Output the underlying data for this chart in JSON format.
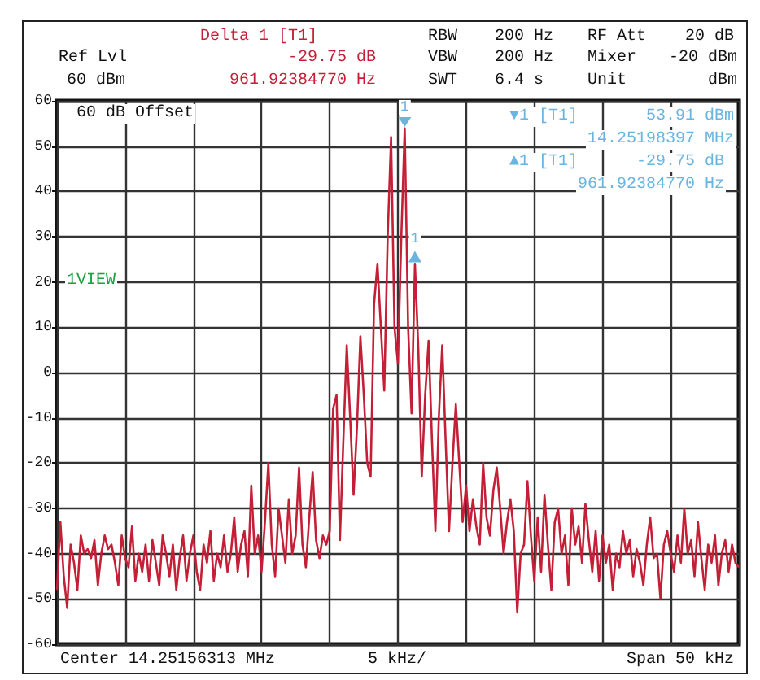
{
  "chart_data": {
    "type": "line",
    "color": "#c41f36",
    "categories": [
      null,
      null,
      null,
      null,
      null,
      null,
      null,
      null,
      null,
      null,
      null,
      null,
      null,
      null,
      null,
      null,
      null,
      null,
      null,
      null,
      null,
      null,
      null,
      null,
      null,
      null,
      null,
      null,
      null,
      null,
      null,
      null,
      null,
      null,
      null,
      null,
      null,
      null,
      null,
      null,
      null,
      null,
      null,
      null,
      null,
      null,
      null,
      null,
      null,
      null,
      null,
      null,
      null,
      null,
      null,
      null,
      null,
      null,
      null,
      null,
      null,
      null,
      null,
      null,
      null,
      null,
      null,
      null,
      null,
      null,
      null,
      null,
      null,
      null,
      null,
      null,
      null,
      null,
      null,
      null,
      null,
      null,
      null,
      null,
      null,
      null,
      null,
      null,
      null,
      null,
      null,
      null,
      null,
      null,
      null,
      null,
      null,
      null,
      null,
      null,
      null,
      null,
      null,
      null,
      null,
      null,
      null,
      null,
      null,
      null,
      null,
      null,
      null,
      null,
      null,
      null,
      null,
      null,
      null,
      null,
      null,
      null,
      null,
      null,
      null,
      null,
      null,
      null,
      null,
      null,
      null,
      null,
      null,
      null,
      null,
      null,
      null,
      null,
      null,
      null,
      null,
      null,
      null,
      null,
      null,
      null,
      null,
      null,
      null,
      null,
      null,
      null,
      null,
      null,
      null,
      null,
      null,
      null,
      null,
      null,
      null,
      null,
      null,
      null,
      null,
      null,
      null,
      null,
      null,
      null,
      null,
      null,
      null,
      null,
      null,
      null,
      null,
      null,
      null,
      null,
      null,
      null,
      null,
      null,
      null,
      null,
      null,
      null,
      null,
      null,
      null,
      null,
      null,
      null,
      null,
      null,
      null,
      null,
      null,
      null,
      null
    ],
    "values": [
      -48,
      -33,
      -45,
      -52,
      -38,
      -42,
      -48,
      -36,
      -40,
      -39,
      -41,
      -37,
      -47,
      -40,
      -36,
      -39,
      -38,
      -42,
      -47,
      -36,
      -41,
      -43,
      -34,
      -46,
      -40,
      -44,
      -38,
      -46,
      -37,
      -42,
      -47,
      -36,
      -40,
      -45,
      -38,
      -48,
      -41,
      -36,
      -46,
      -40,
      -36,
      -44,
      -48,
      -38,
      -42,
      -35,
      -46,
      -40,
      -43,
      -36,
      -44,
      -40,
      -32,
      -44,
      -38,
      -35,
      -45,
      -25,
      -40,
      -36,
      -44,
      -33,
      -20,
      -38,
      -45,
      -30,
      -36,
      -42,
      -28,
      -40,
      -36,
      -21,
      -38,
      -43,
      -32,
      -22,
      -37,
      -41,
      -36,
      -38,
      -35,
      -8,
      -5,
      -37,
      -15,
      6,
      -10,
      -27,
      -12,
      8,
      -5,
      -20,
      -23,
      15,
      24,
      10,
      -4,
      30,
      52,
      10,
      2,
      30,
      53.91,
      10,
      -9,
      24,
      5,
      -23,
      -5,
      7,
      -15,
      -35,
      -10,
      6,
      -15,
      -35,
      -20,
      -7,
      -20,
      -33,
      -25,
      -35,
      -28,
      -34,
      -38,
      -20,
      -32,
      -36,
      -26,
      -21,
      -30,
      -40,
      -33,
      -28,
      -35,
      -53,
      -40,
      -38,
      -24,
      -36,
      -46,
      -32,
      -44,
      -27,
      -38,
      -48,
      -33,
      -30,
      -40,
      -36,
      -47,
      -30,
      -38,
      -34,
      -42,
      -29,
      -37,
      -44,
      -35,
      -46,
      -36,
      -42,
      -38,
      -48,
      -40,
      -43,
      -35,
      -40,
      -37,
      -45,
      -39,
      -42,
      -47,
      -38,
      -32,
      -41,
      -40,
      -50,
      -38,
      -35,
      -40,
      -44,
      -36,
      -42,
      -30,
      -40,
      -37,
      -45,
      -33,
      -41,
      -48,
      -38,
      -42,
      -36,
      -47,
      -40,
      -37,
      -44,
      -38,
      -42,
      -43
    ],
    "ylim": [
      -60,
      60
    ],
    "yticks": [
      -60,
      -50,
      -40,
      -30,
      -20,
      -10,
      0,
      10,
      20,
      30,
      40,
      50,
      60
    ],
    "grid": true,
    "tick_labels": "y",
    "annotations": [
      "Delta 1 [T1]",
      "Ref Lvl",
      "60 dBm",
      "-29.75 dB",
      "961.92384770 Hz",
      "RBW",
      "200 Hz",
      "VBW",
      "200 Hz",
      "SWT",
      "6.4 s",
      "RF Att",
      "20 dB",
      "Mixer",
      "-20 dBm",
      "Unit",
      "dBm",
      "60 dB Offset",
      "1VIEW",
      "▼1 [T1]",
      "53.91 dBm",
      "14.25198397 MHz",
      "▲1 [T1]",
      "-29.75 dB",
      "961.92384770 Hz",
      "Center 14.25156313 MHz",
      "5 kHz/",
      "Span 50 kHz",
      "1",
      "1"
    ]
  }
}
